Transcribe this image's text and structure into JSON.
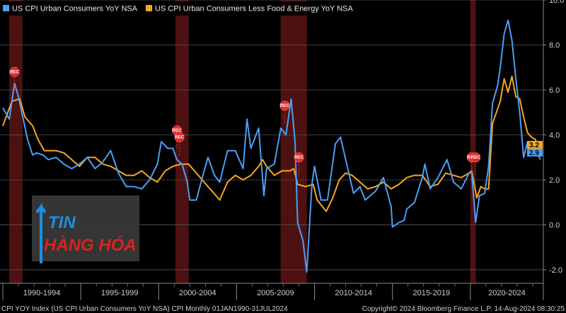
{
  "chart_data": {
    "type": "line",
    "x_range": [
      "1990-01",
      "2024-07"
    ],
    "ylim": [
      -2.6,
      10.0
    ],
    "y_ticks": [
      "10.0",
      "8.0",
      "6.0",
      "4.0",
      "2.0",
      "0.0",
      "-2.0"
    ],
    "x_period_labels": [
      "1990-1994",
      "1995-1999",
      "2000-2004",
      "2005-2009",
      "2010-2014",
      "2015-2019",
      "2020-2024"
    ],
    "grid": true,
    "legend_position": "top-left",
    "recessions": [
      {
        "start": "1990-07",
        "end": "1991-03",
        "label": "REC"
      },
      {
        "start": "2001-03",
        "end": "2001-11",
        "label": "REC"
      },
      {
        "start": "2007-12",
        "end": "2009-06",
        "label": "REC"
      },
      {
        "start": "2020-02",
        "end": "2020-04",
        "label": "REC"
      }
    ],
    "recession_markers": [
      {
        "date": "1990-10",
        "value": 6.8,
        "label": "REC"
      },
      {
        "date": "2001-03",
        "value": 4.2,
        "label": "REC"
      },
      {
        "date": "2001-05",
        "value": 3.9,
        "label": "REC"
      },
      {
        "date": "2008-02",
        "value": 5.3,
        "label": "REC"
      },
      {
        "date": "2009-01",
        "value": 3.0,
        "label": "REC"
      },
      {
        "date": "2020-02",
        "value": 3.0,
        "label": "REC"
      },
      {
        "date": "2020-05",
        "value": 3.0,
        "label": "REC"
      }
    ],
    "series": [
      {
        "name": "US CPI Urban Consumers YoY NSA",
        "color": "#4a9ff5",
        "last_value": "2.9",
        "points": [
          [
            "1990-01",
            5.2
          ],
          [
            "1990-06",
            4.7
          ],
          [
            "1990-10",
            6.3
          ],
          [
            "1991-01",
            5.7
          ],
          [
            "1991-04",
            4.9
          ],
          [
            "1991-08",
            3.8
          ],
          [
            "1991-12",
            3.1
          ],
          [
            "1992-03",
            3.2
          ],
          [
            "1992-08",
            3.1
          ],
          [
            "1992-12",
            2.9
          ],
          [
            "1993-06",
            3.0
          ],
          [
            "1993-12",
            2.7
          ],
          [
            "1994-06",
            2.5
          ],
          [
            "1994-12",
            2.7
          ],
          [
            "1995-06",
            3.0
          ],
          [
            "1995-12",
            2.5
          ],
          [
            "1996-06",
            2.8
          ],
          [
            "1996-12",
            3.3
          ],
          [
            "1997-06",
            2.3
          ],
          [
            "1997-12",
            1.7
          ],
          [
            "1998-06",
            1.7
          ],
          [
            "1998-12",
            1.6
          ],
          [
            "1999-06",
            2.0
          ],
          [
            "1999-12",
            2.7
          ],
          [
            "2000-03",
            3.7
          ],
          [
            "2000-08",
            3.4
          ],
          [
            "2000-12",
            3.4
          ],
          [
            "2001-03",
            2.9
          ],
          [
            "2001-07",
            2.7
          ],
          [
            "2001-11",
            1.9
          ],
          [
            "2002-01",
            1.1
          ],
          [
            "2002-06",
            1.1
          ],
          [
            "2002-12",
            2.4
          ],
          [
            "2003-03",
            3.0
          ],
          [
            "2003-08",
            2.2
          ],
          [
            "2003-12",
            1.9
          ],
          [
            "2004-06",
            3.3
          ],
          [
            "2004-12",
            3.3
          ],
          [
            "2005-06",
            2.5
          ],
          [
            "2005-09",
            4.7
          ],
          [
            "2005-12",
            3.4
          ],
          [
            "2006-06",
            4.3
          ],
          [
            "2006-10",
            1.3
          ],
          [
            "2006-12",
            2.5
          ],
          [
            "2007-06",
            2.7
          ],
          [
            "2007-11",
            4.3
          ],
          [
            "2008-03",
            4.0
          ],
          [
            "2008-07",
            5.6
          ],
          [
            "2008-10",
            3.7
          ],
          [
            "2008-12",
            0.1
          ],
          [
            "2009-04",
            -0.7
          ],
          [
            "2009-07",
            -2.1
          ],
          [
            "2009-11",
            1.8
          ],
          [
            "2010-01",
            2.6
          ],
          [
            "2010-06",
            1.1
          ],
          [
            "2010-11",
            1.1
          ],
          [
            "2011-05",
            3.6
          ],
          [
            "2011-09",
            3.9
          ],
          [
            "2012-01",
            2.9
          ],
          [
            "2012-07",
            1.4
          ],
          [
            "2012-12",
            1.7
          ],
          [
            "2013-04",
            1.1
          ],
          [
            "2013-12",
            1.5
          ],
          [
            "2014-06",
            2.1
          ],
          [
            "2014-12",
            0.8
          ],
          [
            "2015-01",
            -0.1
          ],
          [
            "2015-06",
            0.1
          ],
          [
            "2015-10",
            0.2
          ],
          [
            "2015-12",
            0.7
          ],
          [
            "2016-06",
            1.0
          ],
          [
            "2016-12",
            2.1
          ],
          [
            "2017-02",
            2.7
          ],
          [
            "2017-06",
            1.6
          ],
          [
            "2017-12",
            2.1
          ],
          [
            "2018-07",
            2.9
          ],
          [
            "2018-12",
            1.9
          ],
          [
            "2019-06",
            1.6
          ],
          [
            "2019-12",
            2.3
          ],
          [
            "2020-02",
            2.3
          ],
          [
            "2020-05",
            0.1
          ],
          [
            "2020-08",
            1.3
          ],
          [
            "2020-12",
            1.4
          ],
          [
            "2021-03",
            2.6
          ],
          [
            "2021-06",
            5.4
          ],
          [
            "2021-10",
            6.2
          ],
          [
            "2021-12",
            7.0
          ],
          [
            "2022-03",
            8.5
          ],
          [
            "2022-06",
            9.1
          ],
          [
            "2022-09",
            8.2
          ],
          [
            "2022-12",
            6.5
          ],
          [
            "2023-03",
            5.0
          ],
          [
            "2023-06",
            3.0
          ],
          [
            "2023-09",
            3.7
          ],
          [
            "2023-12",
            3.4
          ],
          [
            "2024-03",
            3.5
          ],
          [
            "2024-06",
            3.0
          ],
          [
            "2024-07",
            2.9
          ]
        ]
      },
      {
        "name": "US CPI Urban Consumers Less Food & Energy YoY NSA",
        "color": "#f5a623",
        "last_value": "3.2",
        "points": [
          [
            "1990-01",
            4.4
          ],
          [
            "1990-08",
            5.5
          ],
          [
            "1991-02",
            5.6
          ],
          [
            "1991-06",
            4.8
          ],
          [
            "1991-12",
            4.4
          ],
          [
            "1992-04",
            3.8
          ],
          [
            "1992-09",
            3.3
          ],
          [
            "1992-12",
            3.3
          ],
          [
            "1993-06",
            3.3
          ],
          [
            "1993-12",
            3.2
          ],
          [
            "1994-06",
            2.9
          ],
          [
            "1994-12",
            2.6
          ],
          [
            "1995-06",
            3.0
          ],
          [
            "1995-12",
            3.0
          ],
          [
            "1996-06",
            2.7
          ],
          [
            "1996-12",
            2.6
          ],
          [
            "1997-06",
            2.4
          ],
          [
            "1997-12",
            2.2
          ],
          [
            "1998-06",
            2.2
          ],
          [
            "1998-12",
            2.4
          ],
          [
            "1999-06",
            2.1
          ],
          [
            "1999-12",
            1.9
          ],
          [
            "2000-06",
            2.4
          ],
          [
            "2000-12",
            2.6
          ],
          [
            "2001-06",
            2.7
          ],
          [
            "2001-12",
            2.7
          ],
          [
            "2002-06",
            2.3
          ],
          [
            "2002-12",
            1.9
          ],
          [
            "2003-06",
            1.5
          ],
          [
            "2003-12",
            1.1
          ],
          [
            "2004-06",
            1.9
          ],
          [
            "2004-12",
            2.2
          ],
          [
            "2005-06",
            2.0
          ],
          [
            "2005-12",
            2.2
          ],
          [
            "2006-06",
            2.6
          ],
          [
            "2006-09",
            2.9
          ],
          [
            "2006-12",
            2.6
          ],
          [
            "2007-06",
            2.2
          ],
          [
            "2007-12",
            2.4
          ],
          [
            "2008-06",
            2.4
          ],
          [
            "2008-09",
            2.5
          ],
          [
            "2008-12",
            1.8
          ],
          [
            "2009-06",
            1.7
          ],
          [
            "2009-12",
            1.8
          ],
          [
            "2010-03",
            1.1
          ],
          [
            "2010-10",
            0.6
          ],
          [
            "2011-03",
            1.2
          ],
          [
            "2011-08",
            2.0
          ],
          [
            "2012-01",
            2.3
          ],
          [
            "2012-06",
            2.2
          ],
          [
            "2012-12",
            1.9
          ],
          [
            "2013-06",
            1.6
          ],
          [
            "2013-12",
            1.7
          ],
          [
            "2014-06",
            1.9
          ],
          [
            "2014-12",
            1.6
          ],
          [
            "2015-06",
            1.8
          ],
          [
            "2015-12",
            2.1
          ],
          [
            "2016-06",
            2.2
          ],
          [
            "2016-12",
            2.2
          ],
          [
            "2017-06",
            1.7
          ],
          [
            "2017-12",
            1.8
          ],
          [
            "2018-06",
            2.3
          ],
          [
            "2018-12",
            2.2
          ],
          [
            "2019-06",
            2.1
          ],
          [
            "2019-12",
            2.3
          ],
          [
            "2020-02",
            2.4
          ],
          [
            "2020-06",
            1.2
          ],
          [
            "2020-09",
            1.7
          ],
          [
            "2020-12",
            1.6
          ],
          [
            "2021-03",
            1.6
          ],
          [
            "2021-06",
            4.5
          ],
          [
            "2021-12",
            5.5
          ],
          [
            "2022-03",
            6.5
          ],
          [
            "2022-06",
            5.9
          ],
          [
            "2022-09",
            6.6
          ],
          [
            "2022-12",
            5.7
          ],
          [
            "2023-03",
            5.6
          ],
          [
            "2023-06",
            4.8
          ],
          [
            "2023-09",
            4.1
          ],
          [
            "2023-12",
            3.9
          ],
          [
            "2024-03",
            3.8
          ],
          [
            "2024-06",
            3.3
          ],
          [
            "2024-07",
            3.2
          ]
        ]
      }
    ]
  },
  "footer": {
    "left": "CPI YOY Index (US CPI Urban Consumers YoY NSA) CPI  Monthly 01JAN1990-31JUL2024",
    "right": "Copyright© 2024 Bloomberg Finance L.P.     14-Aug-2024 08:30:25"
  },
  "logo": {
    "line1": "TIN",
    "line2": "HÀNG HÓA"
  }
}
